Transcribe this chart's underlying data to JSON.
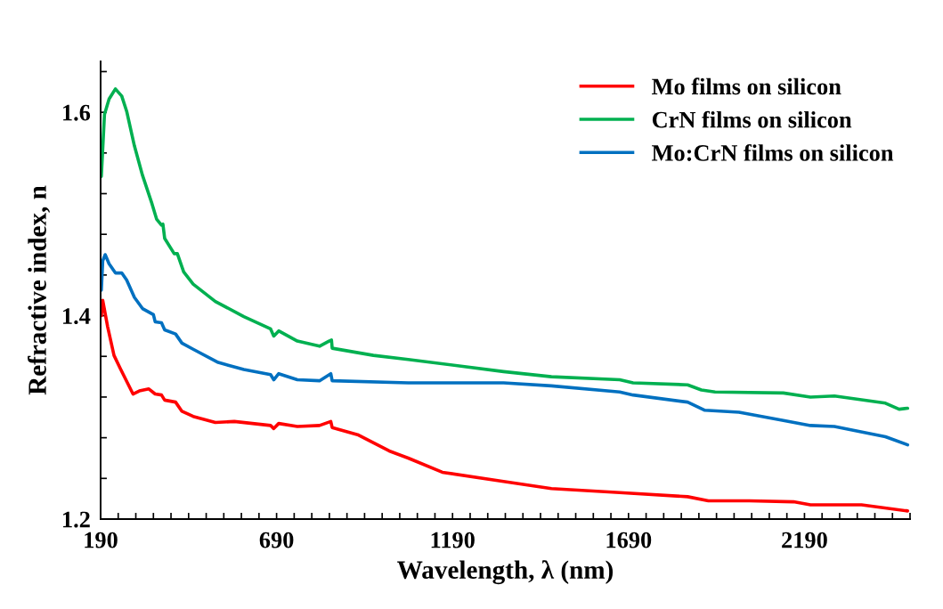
{
  "chart_data": {
    "type": "line",
    "xlabel": "Wavelength, λ (nm)",
    "ylabel": "Refractive index, n",
    "xlim": [
      190,
      2490
    ],
    "ylim": [
      1.2,
      1.65
    ],
    "xticks": [
      190,
      {
        "value": 240,
        "label": null
      },
      {
        "value": 290,
        "label": null
      },
      {
        "value": 340,
        "label": null
      },
      {
        "value": 390,
        "label": null
      },
      {
        "value": 440,
        "label": null
      },
      {
        "value": 490,
        "label": null
      },
      {
        "value": 540,
        "label": null
      },
      {
        "value": 590,
        "label": null
      },
      {
        "value": 640,
        "label": null
      },
      690,
      {
        "value": 740,
        "label": null
      },
      {
        "value": 790,
        "label": null
      },
      {
        "value": 840,
        "label": null
      },
      {
        "value": 890,
        "label": null
      },
      {
        "value": 940,
        "label": null
      },
      {
        "value": 990,
        "label": null
      },
      {
        "value": 1040,
        "label": null
      },
      {
        "value": 1090,
        "label": null
      },
      {
        "value": 1140,
        "label": null
      },
      1190,
      {
        "value": 1240,
        "label": null
      },
      {
        "value": 1290,
        "label": null
      },
      {
        "value": 1340,
        "label": null
      },
      {
        "value": 1390,
        "label": null
      },
      {
        "value": 1440,
        "label": null
      },
      {
        "value": 1490,
        "label": null
      },
      {
        "value": 1540,
        "label": null
      },
      {
        "value": 1590,
        "label": null
      },
      {
        "value": 1640,
        "label": null
      },
      1690,
      {
        "value": 1740,
        "label": null
      },
      {
        "value": 1790,
        "label": null
      },
      {
        "value": 1840,
        "label": null
      },
      {
        "value": 1890,
        "label": null
      },
      {
        "value": 1940,
        "label": null
      },
      {
        "value": 1990,
        "label": null
      },
      {
        "value": 2040,
        "label": null
      },
      {
        "value": 2090,
        "label": null
      },
      {
        "value": 2140,
        "label": null
      },
      2190,
      {
        "value": 2240,
        "label": null
      },
      {
        "value": 2290,
        "label": null
      },
      {
        "value": 2340,
        "label": null
      },
      {
        "value": 2390,
        "label": null
      },
      {
        "value": 2440,
        "label": null
      },
      {
        "value": 2490,
        "label": null
      }
    ],
    "yticks": [
      {
        "value": 1.2,
        "label": "1.2"
      },
      {
        "value": 1.24,
        "label": null
      },
      {
        "value": 1.28,
        "label": null
      },
      {
        "value": 1.32,
        "label": null
      },
      {
        "value": 1.36,
        "label": null
      },
      {
        "value": 1.4,
        "label": "1.4"
      },
      {
        "value": 1.44,
        "label": null
      },
      {
        "value": 1.48,
        "label": null
      },
      {
        "value": 1.52,
        "label": null
      },
      {
        "value": 1.56,
        "label": null
      },
      {
        "value": 1.6,
        "label": "1.6"
      },
      {
        "value": 1.64,
        "label": null
      }
    ],
    "grid": false,
    "legend": "top right",
    "marker": "none",
    "line_style": "solid",
    "series": [
      {
        "name": "Mo films on silicon",
        "color": "#ff0000",
        "x": [
          192,
          196,
          210,
          228,
          246,
          282,
          300,
          327,
          345,
          363,
          372,
          403,
          421,
          453,
          516,
          570,
          673,
          682,
          696,
          749,
          812,
          844,
          848,
          920,
          1010,
          1064,
          1161,
          1335,
          1471,
          1665,
          1858,
          1917,
          2033,
          2159,
          2207,
          2352,
          2483
        ],
        "values": [
          1.4,
          1.415,
          1.389,
          1.361,
          1.348,
          1.323,
          1.326,
          1.328,
          1.323,
          1.322,
          1.317,
          1.315,
          1.306,
          1.301,
          1.295,
          1.296,
          1.292,
          1.289,
          1.294,
          1.291,
          1.292,
          1.296,
          1.29,
          1.283,
          1.267,
          1.26,
          1.246,
          1.237,
          1.23,
          1.226,
          1.222,
          1.218,
          1.218,
          1.217,
          1.214,
          1.214,
          1.208
        ]
      },
      {
        "name": "CrN films on silicon",
        "color": "#00b050",
        "x": [
          192,
          201,
          214,
          232,
          250,
          264,
          286,
          309,
          336,
          349,
          363,
          367,
          372,
          399,
          408,
          426,
          453,
          516,
          597,
          673,
          682,
          696,
          749,
          812,
          839,
          846,
          848,
          965,
          1064,
          1335,
          1471,
          1665,
          1703,
          1858,
          1897,
          1936,
          2130,
          2207,
          2275,
          2420,
          2459,
          2483
        ],
        "values": [
          1.537,
          1.598,
          1.613,
          1.623,
          1.616,
          1.601,
          1.567,
          1.538,
          1.51,
          1.495,
          1.489,
          1.49,
          1.476,
          1.461,
          1.461,
          1.443,
          1.431,
          1.414,
          1.399,
          1.387,
          1.38,
          1.385,
          1.375,
          1.37,
          1.375,
          1.376,
          1.368,
          1.361,
          1.357,
          1.345,
          1.34,
          1.337,
          1.334,
          1.332,
          1.327,
          1.325,
          1.324,
          1.32,
          1.321,
          1.314,
          1.308,
          1.309
        ]
      },
      {
        "name": "Mo:CrN films on silicon",
        "color": "#0070c0",
        "x": [
          192,
          196,
          203,
          214,
          232,
          250,
          264,
          286,
          309,
          340,
          345,
          363,
          372,
          403,
          421,
          453,
          524,
          597,
          673,
          682,
          696,
          749,
          812,
          844,
          848,
          1064,
          1335,
          1471,
          1665,
          1703,
          1858,
          1907,
          2004,
          2130,
          2207,
          2275,
          2420,
          2483
        ],
        "values": [
          1.425,
          1.454,
          1.46,
          1.451,
          1.442,
          1.442,
          1.435,
          1.418,
          1.407,
          1.401,
          1.394,
          1.393,
          1.386,
          1.382,
          1.373,
          1.367,
          1.354,
          1.347,
          1.342,
          1.337,
          1.343,
          1.337,
          1.336,
          1.343,
          1.336,
          1.334,
          1.334,
          1.331,
          1.325,
          1.322,
          1.315,
          1.307,
          1.305,
          1.297,
          1.292,
          1.291,
          1.281,
          1.273
        ]
      }
    ]
  }
}
